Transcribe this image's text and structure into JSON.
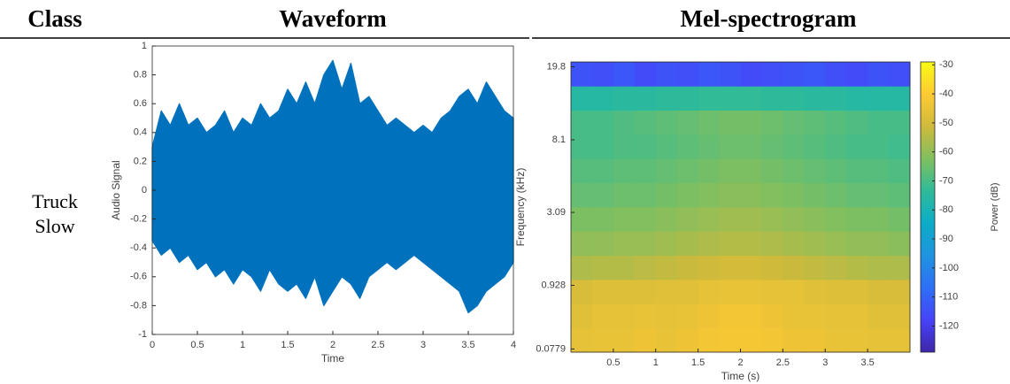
{
  "table": {
    "headers": [
      "Class",
      "Waveform",
      "Mel-spectrogram"
    ],
    "rows": [
      [
        "Truck Slow"
      ]
    ]
  },
  "chart_data": [
    {
      "type": "envelope",
      "color": "#0072bd",
      "x": [
        0,
        0.1,
        0.2,
        0.3,
        0.4,
        0.5,
        0.6,
        0.7,
        0.8,
        0.9,
        1,
        1.1,
        1.2,
        1.3,
        1.4,
        1.5,
        1.6,
        1.7,
        1.8,
        1.9,
        2,
        2.1,
        2.2,
        2.3,
        2.4,
        2.5,
        2.6,
        2.7,
        2.8,
        2.9,
        3,
        3.1,
        3.2,
        3.3,
        3.4,
        3.5,
        3.6,
        3.7,
        3.8,
        3.9,
        4
      ],
      "upper": [
        0.3,
        0.55,
        0.45,
        0.6,
        0.45,
        0.5,
        0.4,
        0.45,
        0.55,
        0.4,
        0.5,
        0.45,
        0.6,
        0.5,
        0.55,
        0.7,
        0.6,
        0.75,
        0.6,
        0.8,
        0.9,
        0.7,
        0.88,
        0.6,
        0.65,
        0.55,
        0.45,
        0.5,
        0.45,
        0.4,
        0.45,
        0.4,
        0.5,
        0.55,
        0.65,
        0.7,
        0.6,
        0.75,
        0.65,
        0.55,
        0.5
      ],
      "lower": [
        -0.35,
        -0.45,
        -0.4,
        -0.5,
        -0.45,
        -0.55,
        -0.5,
        -0.6,
        -0.55,
        -0.65,
        -0.55,
        -0.6,
        -0.7,
        -0.55,
        -0.65,
        -0.7,
        -0.65,
        -0.75,
        -0.6,
        -0.8,
        -0.7,
        -0.6,
        -0.65,
        -0.75,
        -0.6,
        -0.55,
        -0.5,
        -0.55,
        -0.5,
        -0.45,
        -0.5,
        -0.55,
        -0.6,
        -0.65,
        -0.7,
        -0.85,
        -0.8,
        -0.7,
        -0.65,
        -0.6,
        -0.5
      ],
      "xlim": [
        0,
        4
      ],
      "ylim": [
        -1,
        1
      ],
      "xticks": [
        0,
        0.5,
        1,
        1.5,
        2,
        2.5,
        3,
        3.5,
        4
      ],
      "yticks": [
        -1,
        -0.8,
        -0.6,
        -0.4,
        -0.2,
        0,
        0.2,
        0.4,
        0.6,
        0.8,
        1
      ],
      "xlabel": "Time",
      "ylabel": "Audio Signal"
    },
    {
      "type": "heatmap",
      "colormap": "parula",
      "yscale": "mel",
      "x": [
        0.125,
        0.375,
        0.625,
        0.875,
        1.125,
        1.375,
        1.625,
        1.875,
        2.125,
        2.375,
        2.625,
        2.875,
        3.125,
        3.375,
        3.625,
        3.875
      ],
      "y": [
        0.163,
        0.442,
        0.813,
        1.3,
        1.95,
        2.81,
        3.94,
        5.44,
        7.43,
        10.07,
        13.55,
        18.16
      ],
      "z": [
        [
          -46,
          -45,
          -45,
          -44,
          -45,
          -44,
          -43,
          -42,
          -42,
          -43,
          -44,
          -44,
          -45,
          -45,
          -46,
          -46
        ],
        [
          -47,
          -46,
          -46,
          -45,
          -46,
          -45,
          -44,
          -43,
          -43,
          -44,
          -45,
          -45,
          -46,
          -46,
          -47,
          -47
        ],
        [
          -49,
          -48,
          -48,
          -48,
          -47,
          -47,
          -46,
          -45,
          -45,
          -46,
          -46,
          -47,
          -48,
          -48,
          -49,
          -49
        ],
        [
          -56,
          -55,
          -55,
          -54,
          -53,
          -52,
          -51,
          -50,
          -50,
          -51,
          -52,
          -53,
          -54,
          -55,
          -56,
          -56
        ],
        [
          -60,
          -60,
          -59,
          -59,
          -58,
          -57,
          -56,
          -55,
          -55,
          -56,
          -57,
          -58,
          -59,
          -60,
          -60,
          -61
        ],
        [
          -63,
          -63,
          -62,
          -62,
          -61,
          -60,
          -59,
          -58,
          -58,
          -59,
          -60,
          -61,
          -62,
          -63,
          -63,
          -64
        ],
        [
          -66,
          -66,
          -65,
          -65,
          -64,
          -63,
          -62,
          -61,
          -61,
          -62,
          -63,
          -64,
          -65,
          -66,
          -66,
          -67
        ],
        [
          -68,
          -68,
          -67,
          -67,
          -66,
          -65,
          -64,
          -63,
          -63,
          -64,
          -65,
          -66,
          -67,
          -68,
          -68,
          -69
        ],
        [
          -70,
          -70,
          -69,
          -69,
          -68,
          -67,
          -66,
          -65,
          -65,
          -66,
          -67,
          -68,
          -69,
          -70,
          -70,
          -71
        ],
        [
          -70,
          -70,
          -69,
          -68,
          -67,
          -66,
          -65,
          -64,
          -64,
          -65,
          -66,
          -67,
          -68,
          -69,
          -70,
          -70
        ],
        [
          -76,
          -76,
          -75,
          -75,
          -74,
          -74,
          -73,
          -73,
          -73,
          -74,
          -74,
          -75,
          -75,
          -76,
          -76,
          -76
        ],
        [
          -114,
          -115,
          -113,
          -116,
          -114,
          -115,
          -113,
          -114,
          -116,
          -115,
          -114,
          -113,
          -115,
          -116,
          -114,
          -115
        ]
      ],
      "xlim": [
        0,
        4
      ],
      "ylim": [
        0.05,
        21
      ],
      "xticks": [
        0.5,
        1,
        1.5,
        2,
        2.5,
        3,
        3.5
      ],
      "yticks": [
        0.0779,
        0.928,
        3.09,
        8.1,
        19.8
      ],
      "xlabel": "Time (s)",
      "ylabel": "Frequency (kHz)",
      "colorbar": {
        "label": "Power (dB)",
        "lim": [
          -129,
          -29
        ],
        "ticks": [
          -30,
          -40,
          -50,
          -60,
          -70,
          -80,
          -90,
          -100,
          -110,
          -120
        ]
      }
    }
  ]
}
